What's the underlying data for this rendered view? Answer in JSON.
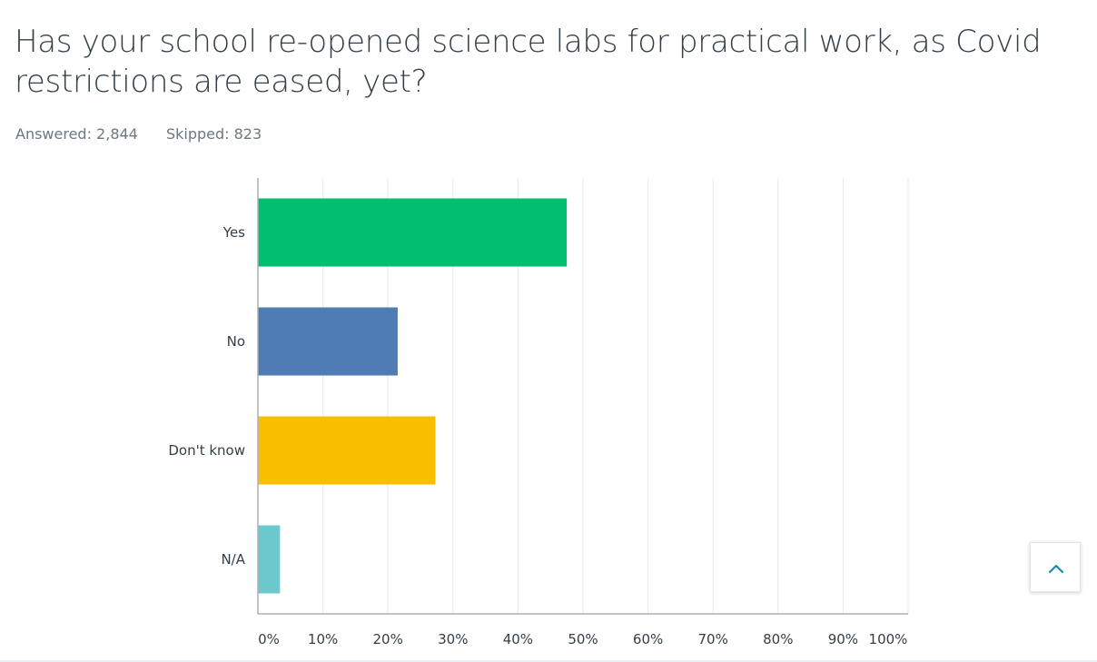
{
  "question": {
    "title": "Has your school re-opened science labs for practical work, as Covid restrictions are eased, yet?",
    "answered": "Answered: 2,844",
    "skipped": "Skipped: 823"
  },
  "chart_data": {
    "type": "bar",
    "orientation": "horizontal",
    "categories": [
      "Yes",
      "No",
      "Don't know",
      "N/A"
    ],
    "values": [
      47.5,
      21.5,
      27.3,
      3.4
    ],
    "colors": [
      "#00bf6f",
      "#507cb6",
      "#f9be00",
      "#6bc8cd"
    ],
    "xlim": [
      0,
      100
    ],
    "x_ticks": [
      "0%",
      "10%",
      "20%",
      "30%",
      "40%",
      "50%",
      "60%",
      "70%",
      "80%",
      "90%",
      "100%"
    ],
    "grid": true
  },
  "scroll_top": {
    "icon": "chevron-up-icon",
    "color": "#1f8ba8"
  }
}
